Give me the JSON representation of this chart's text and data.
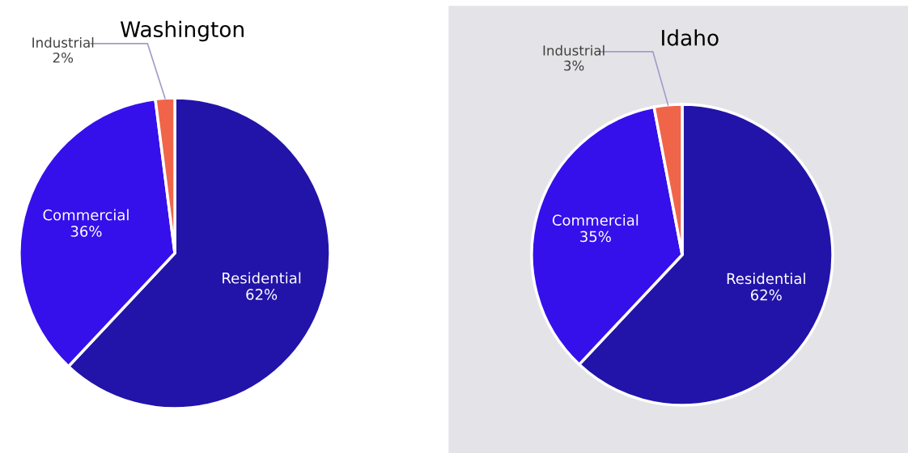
{
  "chart_data": [
    {
      "type": "pie",
      "title": "Washington",
      "categories": [
        "Residential",
        "Commercial",
        "Industrial"
      ],
      "values": [
        62,
        36,
        2
      ],
      "value_labels": [
        "62%",
        "36%",
        "2%"
      ],
      "colors": [
        "#2214a8",
        "#3510eb",
        "#f0654a"
      ]
    },
    {
      "type": "pie",
      "title": "Idaho",
      "categories": [
        "Residential",
        "Commercial",
        "Industrial"
      ],
      "values": [
        62,
        35,
        3
      ],
      "value_labels": [
        "62%",
        "35%",
        "3%"
      ],
      "colors": [
        "#2214a8",
        "#3510eb",
        "#f0654a"
      ]
    }
  ]
}
